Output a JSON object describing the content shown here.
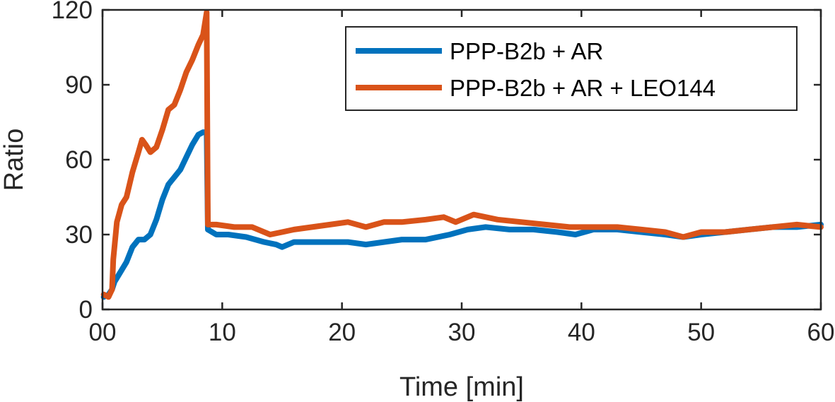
{
  "chart_data": {
    "type": "line",
    "title": "",
    "xlabel": "Time [min]",
    "ylabel": "Ratio",
    "xlim": [
      0,
      60
    ],
    "ylim": [
      0,
      120
    ],
    "x_tick_values": [
      0,
      10,
      20,
      30,
      40,
      50,
      60
    ],
    "x_tick_labels": [
      "00",
      "10",
      "20",
      "30",
      "40",
      "50",
      "60"
    ],
    "y_tick_values": [
      0,
      30,
      60,
      90,
      120
    ],
    "y_tick_labels": [
      "0",
      "30",
      "60",
      "90",
      "120"
    ],
    "grid": false,
    "legend_position": "top-right",
    "series": [
      {
        "name": "PPP-B2b + AR",
        "color": "#0072BD",
        "x": [
          0.1,
          0.5,
          0.8,
          1.0,
          1.5,
          2.0,
          2.5,
          3.0,
          3.5,
          4.0,
          4.5,
          5.0,
          5.5,
          6.0,
          6.5,
          7.0,
          7.5,
          8.0,
          8.4,
          8.7,
          8.8,
          9.5,
          10.5,
          12.0,
          13.5,
          14.5,
          15.0,
          16.0,
          17.5,
          19.0,
          20.5,
          22.0,
          23.5,
          25.0,
          27.0,
          29.0,
          30.5,
          32.0,
          34.0,
          36.0,
          38.0,
          39.5,
          41.0,
          43.0,
          45.0,
          47.0,
          48.5,
          50.0,
          52.0,
          54.0,
          56.0,
          58.0,
          60.0
        ],
        "values": [
          5,
          6,
          8,
          11,
          15,
          19,
          25,
          28,
          28,
          30,
          36,
          44,
          50,
          53,
          56,
          61,
          66,
          70,
          71,
          71,
          32,
          30,
          30,
          29,
          27,
          26,
          25,
          27,
          27,
          27,
          27,
          26,
          27,
          28,
          28,
          30,
          32,
          33,
          32,
          32,
          31,
          30,
          32,
          32,
          31,
          30,
          29,
          30,
          31,
          32,
          33,
          33,
          34
        ]
      },
      {
        "name": "PPP-B2b + AR + LEO144",
        "color": "#D95319",
        "x": [
          0.1,
          0.5,
          0.8,
          0.9,
          1.2,
          1.6,
          2.0,
          2.5,
          3.0,
          3.3,
          3.6,
          4.0,
          4.5,
          5.0,
          5.5,
          6.0,
          6.5,
          7.0,
          7.5,
          8.0,
          8.4,
          8.7,
          8.8,
          9.5,
          11.0,
          12.5,
          14.0,
          15.0,
          16.0,
          17.5,
          19.0,
          20.5,
          22.0,
          23.5,
          25.0,
          27.0,
          28.5,
          29.5,
          31.0,
          33.0,
          35.0,
          37.0,
          39.0,
          41.0,
          43.0,
          45.0,
          47.0,
          48.5,
          50.0,
          52.0,
          54.0,
          56.0,
          58.0,
          60.0
        ],
        "values": [
          6,
          5,
          8,
          20,
          35,
          42,
          45,
          55,
          63,
          68,
          66,
          63,
          65,
          72,
          80,
          82,
          88,
          95,
          100,
          106,
          110,
          119,
          34,
          34,
          33,
          33,
          30,
          31,
          32,
          33,
          34,
          35,
          33,
          35,
          35,
          36,
          37,
          35,
          38,
          36,
          35,
          34,
          33,
          33,
          33,
          32,
          31,
          29,
          31,
          31,
          32,
          33,
          34,
          33
        ]
      }
    ]
  }
}
